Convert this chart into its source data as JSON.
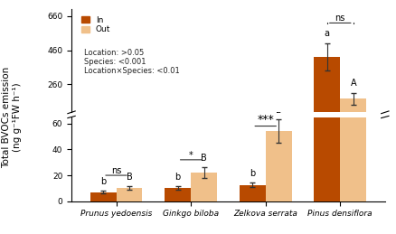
{
  "species": [
    "Prunus yedoensis",
    "Ginkgo biloba",
    "Zelkova serrata",
    "Pinus densiflora"
  ],
  "in_values": [
    7.0,
    10.5,
    12.5,
    420.0
  ],
  "out_values": [
    10.5,
    22.0,
    54.0,
    175.0
  ],
  "in_errors": [
    1.2,
    1.5,
    1.8,
    80.0
  ],
  "out_errors": [
    1.5,
    4.0,
    9.0,
    35.0
  ],
  "color_in": "#b84a00",
  "color_out": "#f0c08a",
  "ylabel": "Total BVOCs emission\n(ng g⁻¹FW h⁻¹)",
  "legend_label_in": "In",
  "legend_label_out": "Out",
  "stats_text": "Location: >0.05\nSpecies: <0.001\nLocation×Species: <0.01",
  "significance_between": [
    "ns",
    "*",
    "***",
    "ns"
  ],
  "letter_in": [
    "b",
    "b",
    "b",
    "a"
  ],
  "letter_out": [
    "B",
    "B",
    "B",
    "A"
  ],
  "yticks_upper": [
    0,
    260,
    460,
    660
  ],
  "yticks_lower": [
    0,
    20,
    40,
    60
  ],
  "break_lower": 60,
  "break_upper": 100,
  "bar_width": 0.35
}
